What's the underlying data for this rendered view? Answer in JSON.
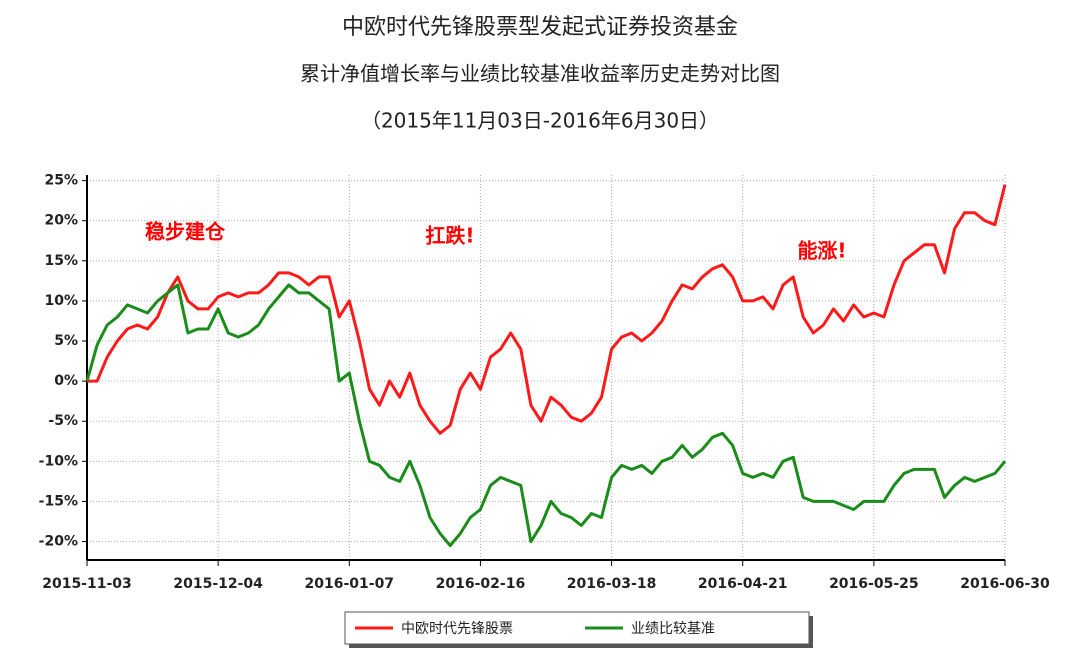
{
  "chart_data": {
    "type": "line",
    "title": "中欧时代先锋股票型发起式证券投资基金",
    "subtitle": "累计净值增长率与业绩比较基准收益率历史走势对比图",
    "period": "（2015年11月03日-2016年6月30日）",
    "annotations": [
      "稳步建仓",
      "扛跌!",
      "能涨!"
    ],
    "annotation_color": "#ff0000",
    "categories": [
      "2015-11-03",
      null,
      null,
      null,
      null,
      null,
      null,
      null,
      null,
      null,
      null,
      null,
      null,
      "2015-12-04",
      null,
      null,
      null,
      null,
      null,
      null,
      null,
      null,
      null,
      null,
      null,
      null,
      "2016-01-07",
      null,
      null,
      null,
      null,
      null,
      null,
      null,
      null,
      null,
      null,
      null,
      null,
      "2016-02-16",
      null,
      null,
      null,
      null,
      null,
      null,
      null,
      null,
      null,
      null,
      null,
      null,
      "2016-03-18",
      null,
      null,
      null,
      null,
      null,
      null,
      null,
      null,
      null,
      null,
      null,
      null,
      "2016-04-21",
      null,
      null,
      null,
      null,
      null,
      null,
      null,
      null,
      null,
      null,
      null,
      null,
      "2016-05-25",
      null,
      null,
      null,
      null,
      null,
      null,
      null,
      null,
      null,
      null,
      null,
      null,
      "2016-06-30"
    ],
    "series": [
      {
        "name": "中欧时代先锋股票",
        "color": "#ff1a1a",
        "values": [
          0,
          0,
          3,
          5,
          6.5,
          7,
          6.5,
          8,
          11,
          13,
          10,
          9,
          9,
          10.5,
          11,
          10.5,
          11,
          11,
          12,
          13.5,
          13.5,
          13,
          12,
          13,
          13,
          8,
          10,
          5,
          -1,
          -3,
          0,
          -2,
          1,
          -3,
          -5,
          -6.5,
          -5.5,
          -1,
          1,
          -1,
          3,
          4,
          6,
          4,
          -3,
          -5,
          -2,
          -3,
          -4.5,
          -5,
          -4,
          -2,
          4,
          5.5,
          6,
          5,
          6,
          7.5,
          10,
          12,
          11.5,
          13,
          14,
          14.5,
          13,
          10,
          10,
          10.5,
          9,
          12,
          13,
          8,
          6,
          7,
          9,
          7.5,
          9.5,
          8,
          8.5,
          8,
          12,
          15,
          16,
          17,
          17,
          13.5,
          19,
          21,
          21,
          20,
          19.5,
          24.5
        ]
      },
      {
        "name": "业绩比较基准",
        "color": "#1a8c1a",
        "values": [
          0,
          4.5,
          7,
          8,
          9.5,
          9,
          8.5,
          10,
          11,
          12,
          6,
          6.5,
          6.5,
          9,
          6,
          5.5,
          6,
          7,
          9,
          10.5,
          12,
          11,
          11,
          10,
          9,
          0,
          1,
          -5,
          -10,
          -10.5,
          -12,
          -12.5,
          -10,
          -13,
          -17,
          -19,
          -20.5,
          -19,
          -17,
          -16,
          -13,
          -12,
          -12.5,
          -13,
          -20,
          -18,
          -15,
          -16.5,
          -17,
          -18,
          -16.5,
          -17,
          -12,
          -10.5,
          -11,
          -10.5,
          -11.5,
          -10,
          -9.5,
          -8,
          -9.5,
          -8.5,
          -7,
          -6.5,
          -8,
          -11.5,
          -12,
          -11.5,
          -12,
          -10,
          -9.5,
          -14.5,
          -15,
          -15,
          -15,
          -15.5,
          -16,
          -15,
          -15,
          -15,
          -13,
          -11.5,
          -11,
          -11,
          -11,
          -14.5,
          -13,
          -12,
          -12.5,
          -12,
          -11.5,
          -10
        ]
      }
    ],
    "ylim": [
      -22.3,
      25.7
    ],
    "yticks": [
      {
        "value": -20,
        "label": "-20%"
      },
      {
        "value": -15,
        "label": "-15%"
      },
      {
        "value": -10,
        "label": "-10%"
      },
      {
        "value": -5,
        "label": "-5%"
      },
      {
        "value": 0,
        "label": "0%"
      },
      {
        "value": 5,
        "label": "5%"
      },
      {
        "value": 10,
        "label": "10%"
      },
      {
        "value": 15,
        "label": "15%"
      },
      {
        "value": 20,
        "label": "20%"
      },
      {
        "value": 25,
        "label": "25%"
      }
    ],
    "grid": true
  }
}
